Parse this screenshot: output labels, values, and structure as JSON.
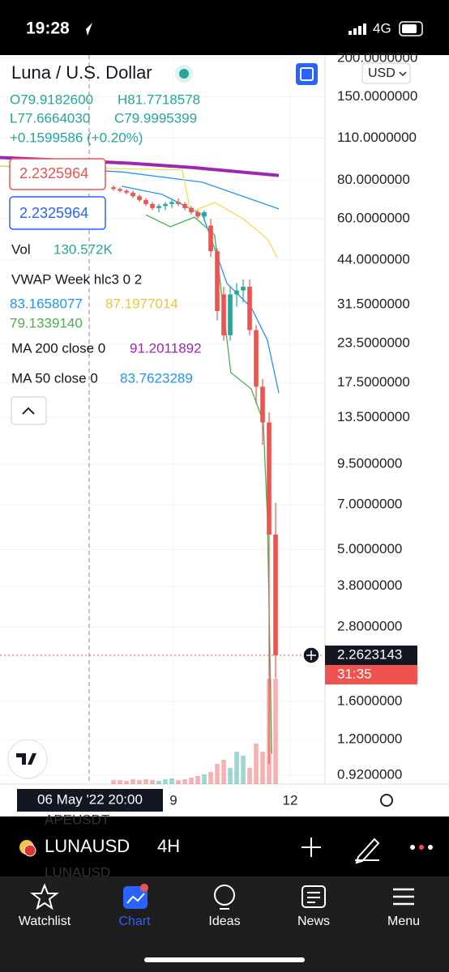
{
  "status_bar": {
    "time": "19:28",
    "network": "4G"
  },
  "header": {
    "title": "Luna / U.S. Dollar",
    "open": "O79.9182600",
    "high": "H81.7718578",
    "low": "L77.6664030",
    "close": "C79.9995399",
    "change": "+0.1599586 (+0.20%)",
    "currency": "USD"
  },
  "price_boxes": [
    "2.2325964",
    "2.2325964"
  ],
  "indicators": {
    "vol_label": "Vol",
    "vol_value": "130.572K",
    "vwap_label": "VWAP Week hlc3 0 2",
    "vwap_values": [
      "83.1658077",
      "87.1977014",
      "79.1339140"
    ],
    "ma200_label": "MA 200 close 0",
    "ma200_value": "91.2011892",
    "ma50_label": "MA 50 close 0",
    "ma50_value": "83.7623289"
  },
  "chart_data": {
    "type": "candlestick",
    "log_scale": true,
    "grid": true,
    "x": [
      17.5,
      18.5,
      19.5,
      20.5,
      21.5,
      22.5,
      23.5,
      24.5,
      25.5,
      26.5,
      27.5,
      28.5,
      29.5,
      30.5,
      31.5,
      32.5,
      33.5,
      34.5,
      35.5,
      36.5,
      37.5,
      38.5,
      39.5,
      40.5,
      41.5,
      42.5
    ],
    "open": [
      76,
      75,
      74,
      73,
      71,
      69,
      67,
      65,
      66,
      67,
      68,
      67,
      65,
      63,
      61,
      57,
      47,
      34,
      25,
      34,
      35,
      36,
      26,
      17,
      13,
      5.6
    ],
    "high": [
      77,
      76,
      75,
      74,
      72,
      70,
      68,
      67,
      68,
      69,
      70,
      68,
      66,
      64,
      64,
      60,
      48,
      36,
      36,
      37,
      38,
      38,
      27,
      18,
      14,
      7.1
    ],
    "low": [
      74,
      73,
      72,
      70,
      68,
      66,
      64,
      63,
      64,
      65,
      66,
      64,
      62,
      60,
      59,
      45,
      28,
      24,
      24,
      31,
      32,
      25,
      15,
      11,
      1.0,
      1.9
    ],
    "close": [
      75,
      74,
      73,
      71,
      69,
      67,
      65,
      66,
      67,
      68,
      67,
      65,
      63,
      61,
      63,
      47,
      30,
      25,
      34,
      35,
      36,
      26,
      17,
      13,
      5.6,
      2.2623143
    ],
    "volume": [
      5,
      5,
      4,
      6,
      5,
      6,
      5,
      4,
      6,
      7,
      5,
      6,
      8,
      10,
      12,
      15,
      25,
      30,
      20,
      40,
      35,
      20,
      50,
      40,
      130,
      130
    ],
    "volume_lim": [
      0,
      300
    ],
    "up_color": "#26a69a",
    "down_color": "#ef5350",
    "lines": [
      {
        "color": "#9c27b0",
        "x": [
          0,
          10,
          20,
          30,
          43
        ],
        "values": [
          95,
          93,
          91,
          88,
          83
        ]
      },
      {
        "color": "#2196f3",
        "x": [
          0,
          18.75,
          31.25,
          43
        ],
        "values": [
          89.1,
          85.3,
          78.9,
          64.6
        ]
      },
      {
        "color": "#2196f3",
        "x": [
          18.75,
          25,
          31.25,
          35,
          38.75,
          41.25,
          43
        ],
        "values": [
          76.6,
          72.0,
          61.8,
          36.9,
          30.8,
          24.1,
          16.2
        ]
      },
      {
        "color": "#f5dc4a",
        "x": [
          0,
          28.1,
          29.4,
          33.1,
          37.5,
          41.25,
          42.75
        ],
        "values": [
          89.1,
          86.5,
          63.0,
          67.8,
          60.0,
          51.5,
          44.8
        ]
      },
      {
        "color": "#4caf50",
        "x": [
          22.5,
          26.25,
          30,
          33.1,
          35.6,
          38.75,
          40.6,
          41.25,
          41.9
        ],
        "values": [
          61.8,
          56.5,
          60.7,
          53.1,
          18.9,
          16.7,
          13.1,
          6.3,
          1.08
        ]
      }
    ],
    "xlim": [
      0,
      50
    ],
    "ylim": [
      0.86,
      205
    ],
    "yticks": [
      {
        "value": 200,
        "label": "200.0000000"
      },
      {
        "value": 150,
        "label": "150.0000000"
      },
      {
        "value": 110,
        "label": "110.0000000"
      },
      {
        "value": 80,
        "label": "80.0000000"
      },
      {
        "value": 60,
        "label": "60.0000000"
      },
      {
        "value": 44,
        "label": "44.0000000"
      },
      {
        "value": 31.5,
        "label": "31.5000000"
      },
      {
        "value": 23.5,
        "label": "23.5000000"
      },
      {
        "value": 17.5,
        "label": "17.5000000"
      },
      {
        "value": 13.5,
        "label": "13.5000000"
      },
      {
        "value": 9.5,
        "label": "9.5000000"
      },
      {
        "value": 7,
        "label": "7.0000000"
      },
      {
        "value": 5,
        "label": "5.0000000"
      },
      {
        "value": 3.8,
        "label": "3.8000000"
      },
      {
        "value": 2.8,
        "label": "2.8000000"
      },
      {
        "value": 1.6,
        "label": "1.6000000"
      },
      {
        "value": 1.2,
        "label": "1.2000000"
      },
      {
        "value": 0.92,
        "label": "0.9200000"
      }
    ],
    "xticks": [
      {
        "value": 26.75,
        "label": "9"
      },
      {
        "value": 44.75,
        "label": "12"
      }
    ],
    "crosshair": {
      "x": 13.75,
      "label": "06 May '22  20:00"
    },
    "last_price": 2.2623143,
    "countdown": "31:35"
  },
  "symbol_bar": {
    "symbol": "LUNAUSD",
    "interval": "4H",
    "ghost_above": "APEUSDT",
    "ghost_below": "LUNAUSD"
  },
  "tabs": [
    "Watchlist",
    "Chart",
    "Ideas",
    "News",
    "Menu"
  ]
}
